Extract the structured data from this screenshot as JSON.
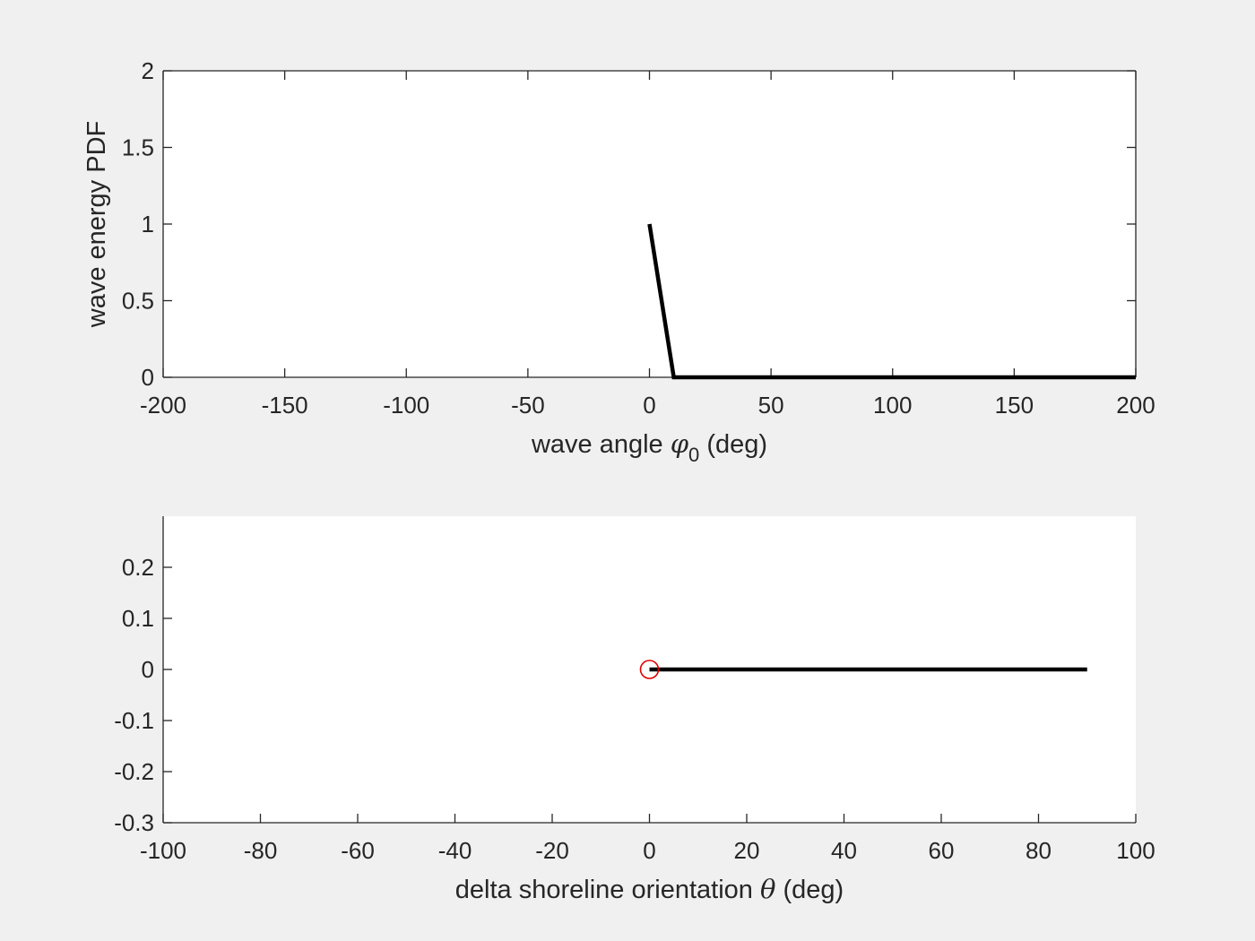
{
  "colors": {
    "figure_background": "#f0f0f0",
    "axes_background": "#ffffff",
    "axis_color": "#262626",
    "line_color": "#000000",
    "marker_color": "#e00000"
  },
  "chart_data": [
    {
      "type": "line",
      "xlabel": {
        "text": "wave angle ",
        "symbol": "φ",
        "subscript": "0",
        "suffix": " (deg)"
      },
      "ylabel": "wave energy PDF",
      "xlim": [
        -200,
        200
      ],
      "ylim": [
        0,
        2
      ],
      "box": true,
      "grid": false,
      "xticks": [
        -200,
        -150,
        -100,
        -50,
        0,
        50,
        100,
        150,
        200
      ],
      "xtick_labels": [
        "-200",
        "-150",
        "-100",
        "-50",
        "0",
        "50",
        "100",
        "150",
        "200"
      ],
      "yticks": [
        0,
        0.5,
        1,
        1.5,
        2
      ],
      "ytick_labels": [
        "0",
        "0.5",
        "1",
        "1.5",
        "2"
      ],
      "series": [
        {
          "x": [
            0,
            10,
            200
          ],
          "y": [
            1,
            0,
            0
          ],
          "color": "#000000"
        }
      ]
    },
    {
      "type": "line",
      "xlabel": {
        "text": "delta shoreline orientation ",
        "symbol": "θ",
        "suffix": " (deg)"
      },
      "ylabel": "",
      "xlim": [
        -100,
        100
      ],
      "ylim": [
        -0.3,
        0.3
      ],
      "box": false,
      "grid": false,
      "xticks": [
        -100,
        -80,
        -60,
        -40,
        -20,
        0,
        20,
        40,
        60,
        80,
        100
      ],
      "xtick_labels": [
        "-100",
        "-80",
        "-60",
        "-40",
        "-20",
        "0",
        "20",
        "40",
        "60",
        "80",
        "100"
      ],
      "yticks": [
        -0.3,
        -0.2,
        -0.1,
        0,
        0.1,
        0.2
      ],
      "ytick_labels": [
        "-0.3",
        "-0.2",
        "-0.1",
        "0",
        "0.1",
        "0.2"
      ],
      "series": [
        {
          "x": [
            0,
            90
          ],
          "y": [
            0,
            0
          ],
          "color": "#000000"
        }
      ],
      "markers": [
        {
          "x": 0,
          "y": 0,
          "shape": "circle",
          "color": "#e00000"
        }
      ]
    }
  ]
}
